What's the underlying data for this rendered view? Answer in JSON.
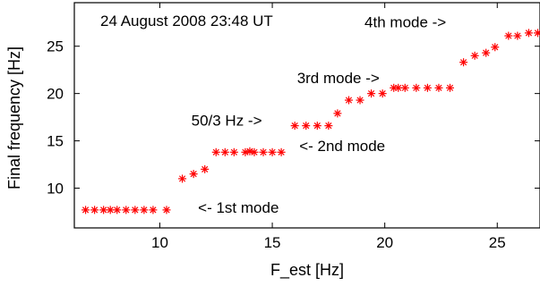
{
  "chart_data": {
    "type": "scatter",
    "title": "",
    "timestamp_label": "24 August 2008 23:48 UT",
    "xlabel": "F_est [Hz]",
    "ylabel": "Final frequency [Hz]",
    "xlim": [
      6.2,
      26.9
    ],
    "ylim": [
      5.8,
      29.6
    ],
    "xticks": [
      10,
      15,
      20,
      25
    ],
    "yticks": [
      10,
      15,
      20,
      25
    ],
    "grid": false,
    "marker": "asterisk",
    "marker_color": "#ff0000",
    "series": [
      {
        "x": [
          6.7,
          7.1,
          7.5,
          7.8,
          8.1,
          8.5,
          8.9,
          9.3,
          9.7,
          10.3,
          11.0,
          11.5,
          12.0,
          12.5,
          12.9,
          13.3,
          13.8,
          14.0,
          14.2,
          14.6,
          15.0,
          15.4,
          16.0,
          16.5,
          17.0,
          17.5,
          17.9,
          18.4,
          18.9,
          19.4,
          19.9,
          20.4,
          20.6,
          20.9,
          21.4,
          21.9,
          22.4,
          22.9,
          23.5,
          24.0,
          24.5,
          24.9,
          25.5,
          25.9,
          26.4,
          26.8
        ],
        "y": [
          7.7,
          7.7,
          7.7,
          7.7,
          7.7,
          7.7,
          7.7,
          7.7,
          7.7,
          7.7,
          11.0,
          11.5,
          12.0,
          13.8,
          13.8,
          13.8,
          13.8,
          13.9,
          13.8,
          13.8,
          13.8,
          13.8,
          16.6,
          16.6,
          16.6,
          16.6,
          17.9,
          19.3,
          19.3,
          20.0,
          20.0,
          20.6,
          20.6,
          20.6,
          20.6,
          20.6,
          20.6,
          20.6,
          23.3,
          24.0,
          24.3,
          24.9,
          26.1,
          26.1,
          26.4,
          26.4
        ]
      }
    ],
    "annotations": [
      {
        "text": "4th mode ->",
        "x": 19.1,
        "y": 27.0
      },
      {
        "text": "3rd mode ->",
        "x": 16.1,
        "y": 21.1
      },
      {
        "text": "50/3 Hz ->",
        "x": 11.4,
        "y": 16.6
      },
      {
        "text": "<- 2nd mode",
        "x": 16.2,
        "y": 13.9
      },
      {
        "text": "<- 1st mode",
        "x": 11.7,
        "y": 7.4
      }
    ]
  }
}
